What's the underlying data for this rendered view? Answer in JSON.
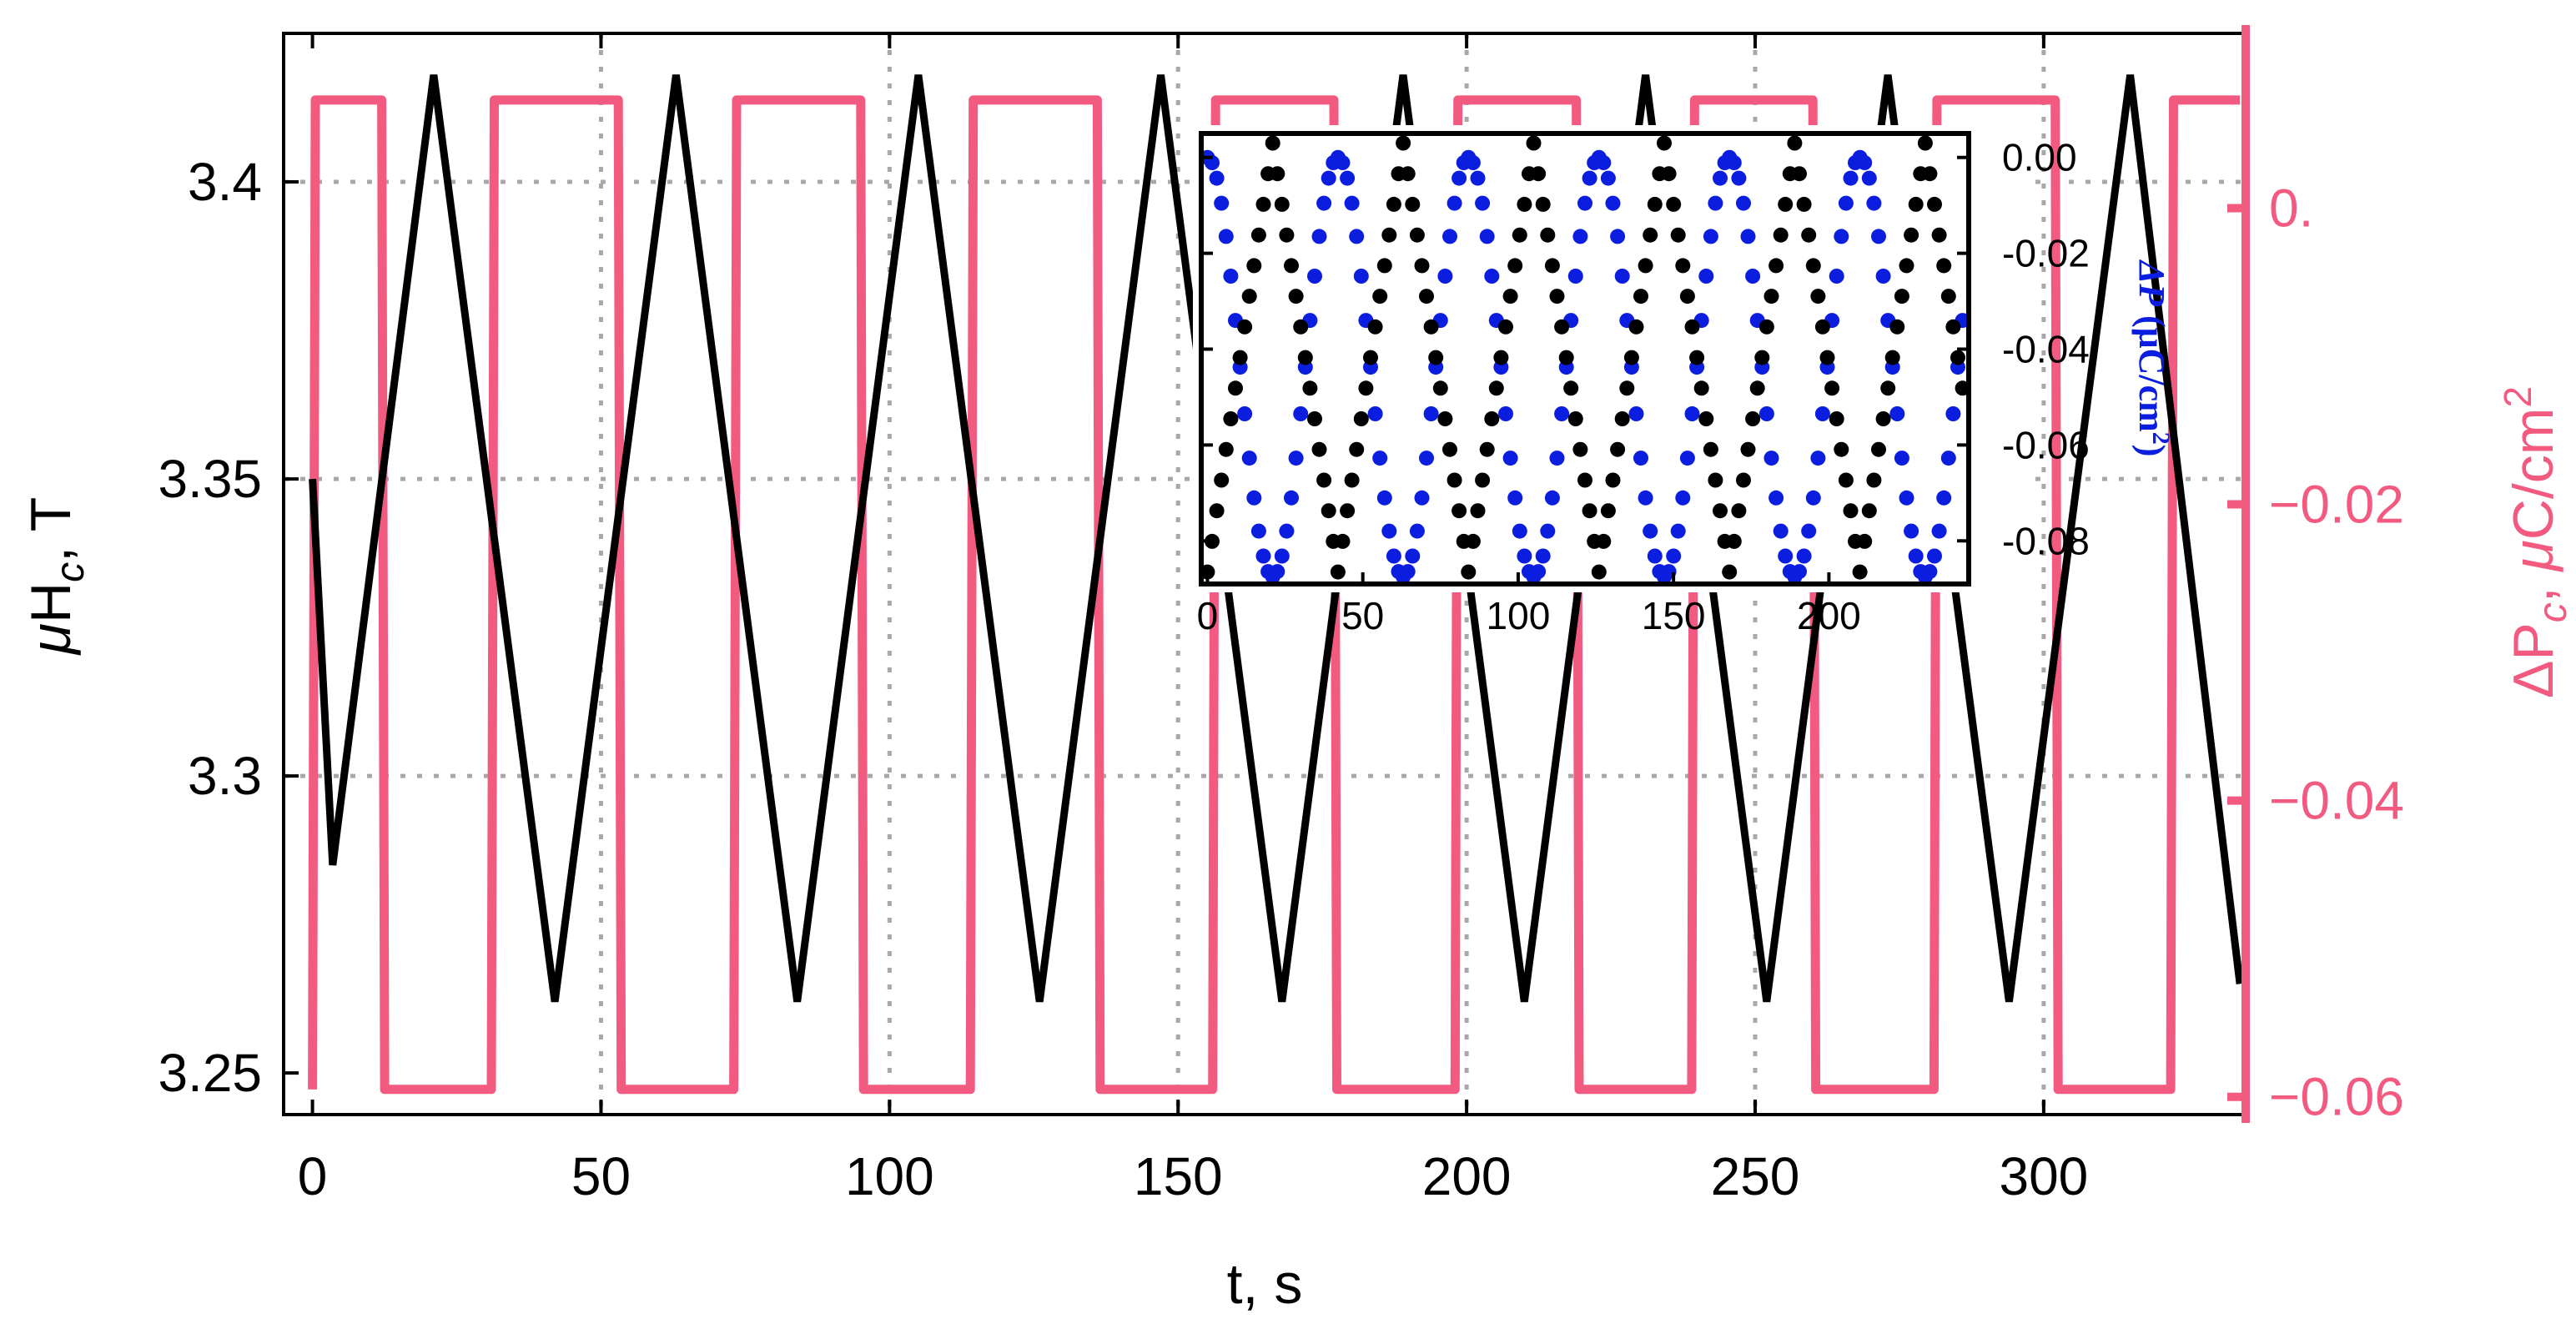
{
  "chart_data": [
    {
      "type": "line",
      "xlabel": "t, s",
      "ylabel_left": "μH_c, T",
      "ylabel_right": "ΔP_c, μC/cm²",
      "xlim": [
        -5,
        335
      ],
      "ylim_left": [
        3.243,
        3.425
      ],
      "ylim_right": [
        -0.0612,
        0.0118
      ],
      "x_ticks": [
        "0",
        "50",
        "100",
        "150",
        "200",
        "250",
        "300"
      ],
      "y_ticks_left": [
        "3.25",
        "3.3",
        "3.35",
        "3.4"
      ],
      "y_ticks_right": [
        "−0.06",
        "−0.04",
        "−0.02",
        "0."
      ],
      "grid": true,
      "series": [
        {
          "axis": "left",
          "color": "#000000",
          "shape": "triangle-wave",
          "x": [
            0,
            3.5,
            21,
            42,
            63,
            84,
            105,
            126,
            147,
            168,
            189,
            210,
            231,
            252,
            273,
            294,
            315,
            334
          ],
          "y": [
            3.35,
            3.285,
            3.418,
            3.262,
            3.418,
            3.262,
            3.418,
            3.262,
            3.418,
            3.262,
            3.418,
            3.262,
            3.418,
            3.262,
            3.418,
            3.262,
            3.418,
            3.265
          ]
        },
        {
          "axis": "right",
          "color": "#f25a80",
          "shape": "square-wave",
          "low": -0.0595,
          "high": 0.0073,
          "x": [
            0,
            0.5,
            12,
            12.5,
            31,
            31.5,
            53,
            53.5,
            73,
            73.5,
            95,
            95.5,
            114,
            114.5,
            136,
            136.5,
            156,
            156.5,
            177,
            177.5,
            198,
            198.5,
            219,
            219.5,
            239,
            239.5,
            260,
            260.5,
            281,
            281.5,
            302,
            302.5,
            322,
            322.5,
            334
          ],
          "y": [
            -0.0595,
            0.0073,
            0.0073,
            -0.0595,
            -0.0595,
            0.0073,
            0.0073,
            -0.0595,
            -0.0595,
            0.0073,
            0.0073,
            -0.0595,
            -0.0595,
            0.0073,
            0.0073,
            -0.0595,
            -0.0595,
            0.0073,
            0.0073,
            -0.0595,
            -0.0595,
            0.0073,
            0.0073,
            -0.0595,
            -0.0595,
            0.0073,
            0.0073,
            -0.0595,
            -0.0595,
            0.0073,
            0.0073,
            -0.0595,
            -0.0595,
            0.0073,
            0.0073
          ]
        }
      ]
    },
    {
      "type": "scatter",
      "xlim": [
        -2,
        245
      ],
      "ylim_right": [
        -0.089,
        0.005
      ],
      "x_ticks": [
        "0",
        "50",
        "100",
        "150",
        "200"
      ],
      "y_ticks_right": [
        "0.00",
        "-0.02",
        "-0.04",
        "-0.06",
        "-0.08"
      ],
      "ylabel_right": "ΔP (μC/cm²)",
      "series": [
        {
          "color": "#0b1ee0",
          "marker": "dot",
          "period": 42,
          "min_at": 42,
          "max": 0.0,
          "min": -0.0875
        },
        {
          "color": "#000000",
          "marker": "dot",
          "period": 42,
          "max_at": 21,
          "max": 0.003,
          "min": -0.0865
        }
      ]
    }
  ]
}
